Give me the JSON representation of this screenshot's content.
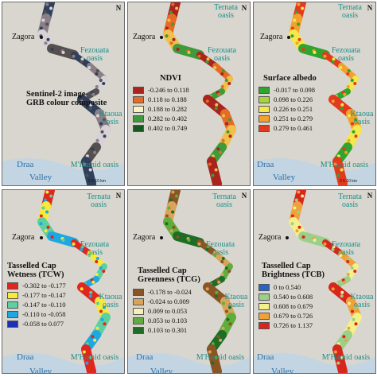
{
  "panels": [
    {
      "id": "sentinel",
      "title_lines": [
        "Sentinel-2 image",
        "GRB colour composite"
      ],
      "legend": [],
      "labels": {
        "fezouata": "Fezouata oasis",
        "ktaoua": "Ktaoua oasis",
        "mhamid": "M'Hamid oasis",
        "zagora": "Zagora",
        "draa": "Draa",
        "valley": "Valley"
      },
      "river_colors": [
        "#2f3f5c",
        "#8a7f86",
        "#d8d2d8",
        "#55504f"
      ]
    },
    {
      "id": "ndvi",
      "title_lines": [
        "NDVI"
      ],
      "legend": [
        {
          "label": "-0.246 to 0.118",
          "color": "#a8241d"
        },
        {
          "label": "0.118 to 0.188",
          "color": "#e56b27"
        },
        {
          "label": "0.188 to 0.282",
          "color": "#f6f4c4"
        },
        {
          "label": "0.282 to 0.402",
          "color": "#3e9a3a"
        },
        {
          "label": "0.402 to 0.749",
          "color": "#14591f"
        }
      ],
      "labels": {
        "ternata": "Ternata oasis",
        "fezouata": "Fezouata oasis",
        "zagora": "Zagora"
      },
      "river_colors": [
        "#a8241d",
        "#e56b27",
        "#f0c04a",
        "#3e9a3a"
      ]
    },
    {
      "id": "albedo",
      "title_lines": [
        "Surface albedo"
      ],
      "legend": [
        {
          "label": "-0.017 to 0.098",
          "color": "#2fa52f"
        },
        {
          "label": "0.098 to 0.226",
          "color": "#a6d63c"
        },
        {
          "label": "0.226 to 0.251",
          "color": "#f5e84a"
        },
        {
          "label": "0.251 to 0.279",
          "color": "#f2a22a"
        },
        {
          "label": "0.279 to 0.461",
          "color": "#e33a1f"
        }
      ],
      "labels": {
        "ternata": "Ternata oasis",
        "fezouata": "Fezouata oasis",
        "ktaoua": "Ktaoua oasis",
        "mhamid": "M'Hamid oasis",
        "zagora": "Zagora",
        "draa": "Draa",
        "valley": "Valley"
      },
      "river_colors": [
        "#e33a1f",
        "#f2a22a",
        "#f5e84a",
        "#2fa52f"
      ]
    },
    {
      "id": "tcw",
      "title_lines": [
        "Tasselled Cap",
        "Wetness (TCW)"
      ],
      "legend": [
        {
          "label": "-0.302 to -0.177",
          "color": "#e0261d"
        },
        {
          "label": "-0.177 to -0.147",
          "color": "#f6ea3a"
        },
        {
          "label": "-0.147 to -0.110",
          "color": "#5cd0a0"
        },
        {
          "label": "-0.110 to -0.058",
          "color": "#1fa8e0"
        },
        {
          "label": "-0.058 to 0.077",
          "color": "#1c2fb8"
        }
      ],
      "labels": {
        "ternata": "Ternata oasis",
        "fezouata": "Fezouata oasis",
        "ktaoua": "Ktaoua oasis",
        "mhamid": "M'Hamid oasis",
        "zagora": "Zagora",
        "draa": "Draa",
        "valley": "Valley"
      },
      "river_colors": [
        "#e0261d",
        "#f6ea3a",
        "#5cd0a0",
        "#1fa8e0"
      ]
    },
    {
      "id": "tcg",
      "title_lines": [
        "Tasselled Cap",
        "Greenness (TCG)"
      ],
      "legend": [
        {
          "label": "-0.178 to -0.024",
          "color": "#8a5424"
        },
        {
          "label": "-0.024 to 0.009",
          "color": "#d9a45a"
        },
        {
          "label": "0.009 to 0.053",
          "color": "#f6f0b8"
        },
        {
          "label": "0.053 to 0.103",
          "color": "#5fae3c"
        },
        {
          "label": "0.103 to 0.301",
          "color": "#1d6e24"
        }
      ],
      "labels": {
        "ternata": "Ternata oasis",
        "fezouata": "Fezouata oasis",
        "ktaoua": "Ktaoua oasis",
        "mhamid": "M'Hamid oasis",
        "zagora": "Zagora",
        "draa": "Draa",
        "valley": "Valley"
      },
      "river_colors": [
        "#8a5424",
        "#d9a45a",
        "#5fae3c",
        "#1d6e24"
      ]
    },
    {
      "id": "tcb",
      "title_lines": [
        "Tasselled Cap",
        "Brightness (TCB)"
      ],
      "legend": [
        {
          "label": "0 to 0.540",
          "color": "#2a62c8"
        },
        {
          "label": "0.540 to 0.608",
          "color": "#9ccf8a"
        },
        {
          "label": "0.608 to 0.679",
          "color": "#f4f08a"
        },
        {
          "label": "0.679 to 0.726",
          "color": "#f0a23a"
        },
        {
          "label": "0.726 to 1.137",
          "color": "#d8261c"
        }
      ],
      "labels": {
        "ternata": "Ternata oasis",
        "fezouata": "Fezouata oasis",
        "ktaoua": "Ktaoua oasis",
        "mhamid": "M'Hamid oasis",
        "zagora": "Zagora",
        "draa": "Draa",
        "valley": "Valley"
      },
      "river_colors": [
        "#d8261c",
        "#f0a23a",
        "#f4f08a",
        "#9ccf8a"
      ]
    }
  ],
  "north_label": "N",
  "scale_text": "0  5  10 km",
  "map_bg": "#d9d6cf",
  "water_color": "#b9d4ea"
}
